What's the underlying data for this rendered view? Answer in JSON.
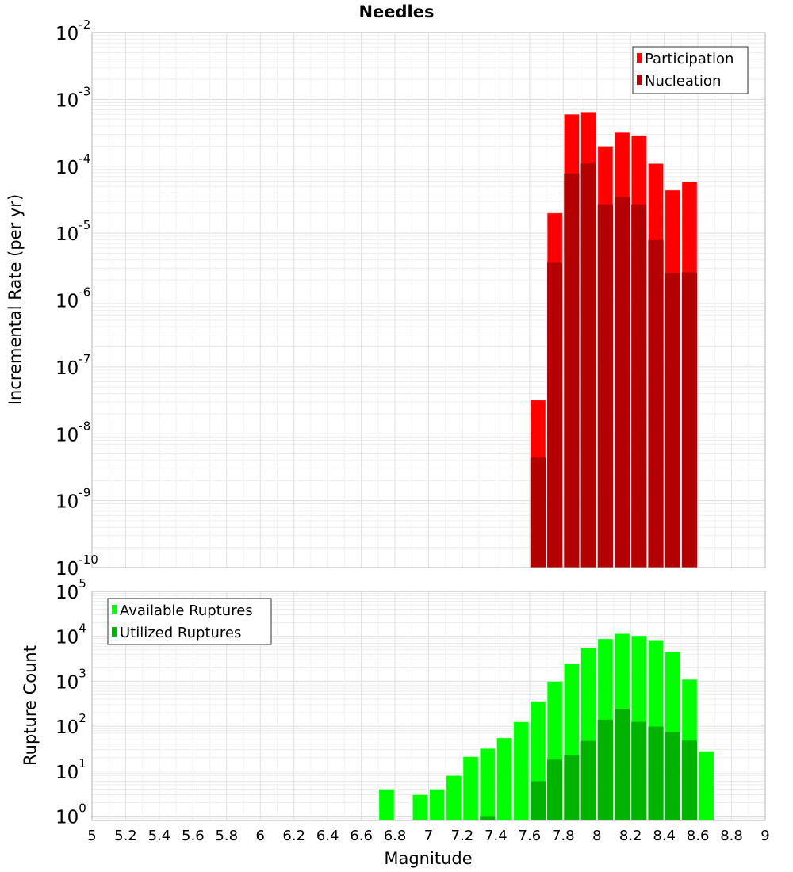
{
  "chart_data": [
    {
      "type": "bar",
      "title": "Needles",
      "xlabel": "Magnitude",
      "ylabel": "Incremental Rate (per yr)",
      "yscale": "log",
      "ylim": [
        1e-10,
        0.01
      ],
      "xlim": [
        5,
        9
      ],
      "grid": true,
      "legend_placement": "top-right",
      "bin_width": 0.1,
      "x": [
        7.65,
        7.75,
        7.85,
        7.95,
        8.05,
        8.15,
        8.25,
        8.35,
        8.45,
        8.55
      ],
      "series": [
        {
          "name": "Participation",
          "color": "#ff0000",
          "values": [
            3.2e-08,
            2e-05,
            0.0006,
            0.00065,
            0.0002,
            0.00032,
            0.00029,
            0.00011,
            4.4e-05,
            5.9e-05
          ]
        },
        {
          "name": "Nucleation",
          "color": "#b30000",
          "values": [
            4.4e-09,
            3.6e-06,
            7.8e-05,
            0.00011,
            2.7e-05,
            3.5e-05,
            2.7e-05,
            7.9e-06,
            2.5e-06,
            2.6e-06
          ]
        }
      ],
      "ytick_exponents": [
        -10,
        -9,
        -8,
        -7,
        -6,
        -5,
        -4,
        -3,
        -2
      ]
    },
    {
      "type": "bar",
      "xlabel": "Magnitude",
      "ylabel": "Rupture Count",
      "yscale": "log",
      "ylim": [
        0.8,
        100000.0
      ],
      "xlim": [
        5,
        9
      ],
      "grid": true,
      "legend_placement": "top-left",
      "bin_width": 0.1,
      "x": [
        6.75,
        6.95,
        7.05,
        7.15,
        7.25,
        7.35,
        7.45,
        7.55,
        7.65,
        7.75,
        7.85,
        7.95,
        8.05,
        8.15,
        8.25,
        8.35,
        8.45,
        8.55,
        8.65
      ],
      "series": [
        {
          "name": "Available Ruptures",
          "color": "#00ff00",
          "values": [
            4,
            3,
            4,
            8,
            21,
            32,
            55,
            125,
            360,
            1000,
            2450,
            5600,
            8800,
            11500,
            10300,
            8300,
            4500,
            1100,
            28
          ]
        },
        {
          "name": "Utilized Ruptures",
          "color": "#00b300",
          "values": [
            0,
            0,
            0,
            0,
            0,
            1,
            0,
            0,
            6,
            18,
            23,
            47,
            140,
            245,
            125,
            98,
            74,
            48,
            0
          ]
        }
      ],
      "ytick_exponents": [
        0,
        1,
        2,
        3,
        4,
        5
      ],
      "xtick_labels": [
        "5",
        "5.2",
        "5.4",
        "5.6",
        "5.8",
        "6",
        "6.2",
        "6.4",
        "6.6",
        "6.8",
        "7",
        "7.2",
        "7.4",
        "7.6",
        "7.8",
        "8",
        "8.2",
        "8.4",
        "8.6",
        "8.8",
        "9"
      ]
    }
  ]
}
